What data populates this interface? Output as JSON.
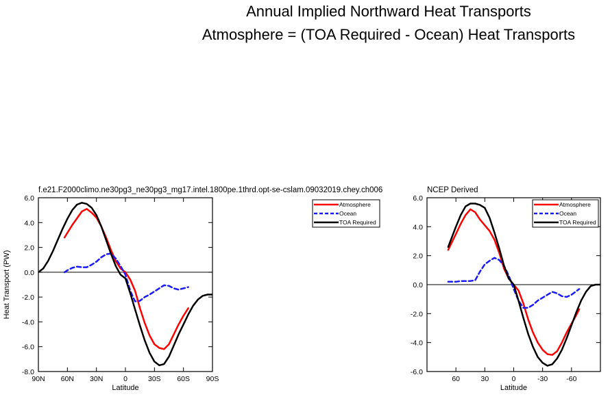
{
  "title": {
    "line1": "Annual Implied Northward Heat Transports",
    "line2": "Atmosphere = (TOA Required - Ocean) Heat Transports"
  },
  "colors": {
    "atmosphere": "#ff0000",
    "ocean": "#1a1aff",
    "toa": "#000000"
  },
  "chart_data": [
    {
      "type": "line",
      "title": "f.e21.F2000climo.ne30pg3_ne30pg3_mg17.intel.1800pe.1thrd.opt-se-cslam.09032019.chey.ch006",
      "xlabel": "Latitude",
      "ylabel": "Heat Transport (PW)",
      "xlim": [
        90,
        -90
      ],
      "ylim": [
        -8,
        6
      ],
      "xticks": [
        90,
        60,
        30,
        0,
        -30,
        -60,
        -90
      ],
      "xtick_labels": [
        "90N",
        "60N",
        "30N",
        "0",
        "30S",
        "60S",
        "90S"
      ],
      "yticks": [
        6,
        4,
        2,
        0,
        -2,
        -4,
        -6,
        -8
      ],
      "ytick_labels": [
        "6.0",
        "4.0",
        "2.0",
        "0.0",
        "-2.0",
        "-4.0",
        "-6.0",
        "-8.0"
      ],
      "zero_line": true,
      "legend": {
        "position": "top-right",
        "entries": [
          "Atmosphere",
          "Ocean",
          "TOA Required"
        ]
      },
      "series": [
        {
          "name": "Atmosphere",
          "style": "solid",
          "x": [
            63,
            55,
            45,
            40,
            35,
            30,
            25,
            20,
            15,
            10,
            5,
            0,
            -5,
            -10,
            -15,
            -20,
            -25,
            -30,
            -35,
            -40,
            -45,
            -50,
            -55,
            -60,
            -65
          ],
          "y": [
            2.8,
            3.8,
            4.9,
            5.1,
            4.8,
            4.4,
            3.7,
            2.8,
            1.8,
            0.9,
            0.3,
            0.0,
            -0.6,
            -1.5,
            -2.9,
            -4.1,
            -5.1,
            -5.8,
            -6.1,
            -6.2,
            -5.8,
            -5.0,
            -4.2,
            -3.5,
            -2.9
          ]
        },
        {
          "name": "Ocean",
          "style": "dashed",
          "x": [
            63,
            60,
            55,
            50,
            45,
            40,
            35,
            30,
            25,
            20,
            15,
            10,
            5,
            0,
            -5,
            -10,
            -15,
            -20,
            -25,
            -30,
            -35,
            -40,
            -45,
            -50,
            -55,
            -60,
            -65
          ],
          "y": [
            0.0,
            0.15,
            0.35,
            0.45,
            0.4,
            0.4,
            0.6,
            0.85,
            1.2,
            1.45,
            1.5,
            1.1,
            0.5,
            -0.2,
            -1.5,
            -2.35,
            -2.3,
            -2.0,
            -1.8,
            -1.55,
            -1.3,
            -1.05,
            -1.1,
            -1.3,
            -1.4,
            -1.3,
            -1.2
          ]
        },
        {
          "name": "TOA Required",
          "style": "solid",
          "x": [
            90,
            85,
            80,
            75,
            70,
            65,
            60,
            55,
            50,
            45,
            40,
            35,
            30,
            25,
            20,
            15,
            10,
            5,
            0,
            -5,
            -10,
            -15,
            -20,
            -25,
            -30,
            -35,
            -40,
            -45,
            -50,
            -55,
            -60,
            -65,
            -70,
            -75,
            -80,
            -85,
            -90
          ],
          "y": [
            0.0,
            0.3,
            0.9,
            1.7,
            2.6,
            3.5,
            4.3,
            5.0,
            5.45,
            5.6,
            5.5,
            5.2,
            4.6,
            3.7,
            2.6,
            1.5,
            0.5,
            -0.2,
            -0.5,
            -1.7,
            -3.0,
            -4.3,
            -5.5,
            -6.5,
            -7.2,
            -7.5,
            -7.4,
            -6.8,
            -5.9,
            -5.0,
            -4.2,
            -3.4,
            -2.7,
            -2.2,
            -1.9,
            -1.8,
            -1.8
          ]
        }
      ]
    },
    {
      "type": "line",
      "title": "NCEP Derived",
      "xlabel": "Latitude",
      "ylabel": "",
      "xlim": [
        90,
        -90
      ],
      "ylim": [
        -6,
        6
      ],
      "xticks": [
        60,
        30,
        0,
        -30,
        -60
      ],
      "xtick_labels": [
        "60",
        "30",
        "0",
        "-30",
        "-60"
      ],
      "yticks": [
        6,
        4,
        2,
        0,
        -2,
        -4,
        -6
      ],
      "ytick_labels": [
        "6.0",
        "4.0",
        "2.0",
        "0.0",
        "-2.0",
        "-4.0",
        "-6.0"
      ],
      "zero_line": true,
      "legend": {
        "position": "top-right",
        "entries": [
          "Atmosphere",
          "Ocean",
          "TOA Required"
        ]
      },
      "series": [
        {
          "name": "Atmosphere",
          "style": "solid",
          "x": [
            68,
            60,
            55,
            50,
            45,
            40,
            35,
            30,
            25,
            20,
            15,
            10,
            5,
            0,
            -5,
            -10,
            -15,
            -20,
            -25,
            -30,
            -35,
            -40,
            -45,
            -50,
            -55,
            -60,
            -65,
            -68
          ],
          "y": [
            2.4,
            3.5,
            4.2,
            4.8,
            5.2,
            5.0,
            4.5,
            4.1,
            3.7,
            3.1,
            2.2,
            1.1,
            0.4,
            0.0,
            -0.4,
            -1.3,
            -2.4,
            -3.3,
            -4.0,
            -4.5,
            -4.8,
            -4.85,
            -4.6,
            -4.0,
            -3.3,
            -2.7,
            -2.1,
            -1.7
          ]
        },
        {
          "name": "Ocean",
          "style": "dashed",
          "x": [
            68,
            60,
            55,
            50,
            45,
            40,
            35,
            30,
            25,
            20,
            15,
            10,
            5,
            0,
            -5,
            -10,
            -15,
            -20,
            -25,
            -30,
            -35,
            -40,
            -45,
            -50,
            -55,
            -60,
            -65,
            -68
          ],
          "y": [
            0.2,
            0.2,
            0.25,
            0.25,
            0.25,
            0.3,
            0.9,
            1.4,
            1.65,
            1.85,
            1.7,
            1.3,
            0.6,
            -0.3,
            -1.1,
            -1.6,
            -1.6,
            -1.4,
            -1.1,
            -0.9,
            -0.7,
            -0.5,
            -0.6,
            -0.8,
            -0.85,
            -0.7,
            -0.45,
            -0.3
          ]
        },
        {
          "name": "TOA Required",
          "style": "solid",
          "x": [
            68,
            60,
            55,
            50,
            45,
            40,
            35,
            30,
            25,
            20,
            15,
            10,
            5,
            0,
            -5,
            -10,
            -15,
            -20,
            -25,
            -30,
            -35,
            -40,
            -45,
            -50,
            -55,
            -60,
            -65,
            -70,
            -75,
            -80,
            -85,
            -90
          ],
          "y": [
            2.6,
            4.0,
            4.8,
            5.4,
            5.6,
            5.6,
            5.5,
            5.3,
            4.6,
            3.6,
            2.5,
            1.3,
            0.4,
            0.0,
            -1.1,
            -2.3,
            -3.4,
            -4.3,
            -5.0,
            -5.4,
            -5.6,
            -5.5,
            -5.1,
            -4.5,
            -3.7,
            -2.8,
            -1.9,
            -1.1,
            -0.5,
            -0.1,
            0.0,
            0.0
          ]
        }
      ]
    }
  ]
}
